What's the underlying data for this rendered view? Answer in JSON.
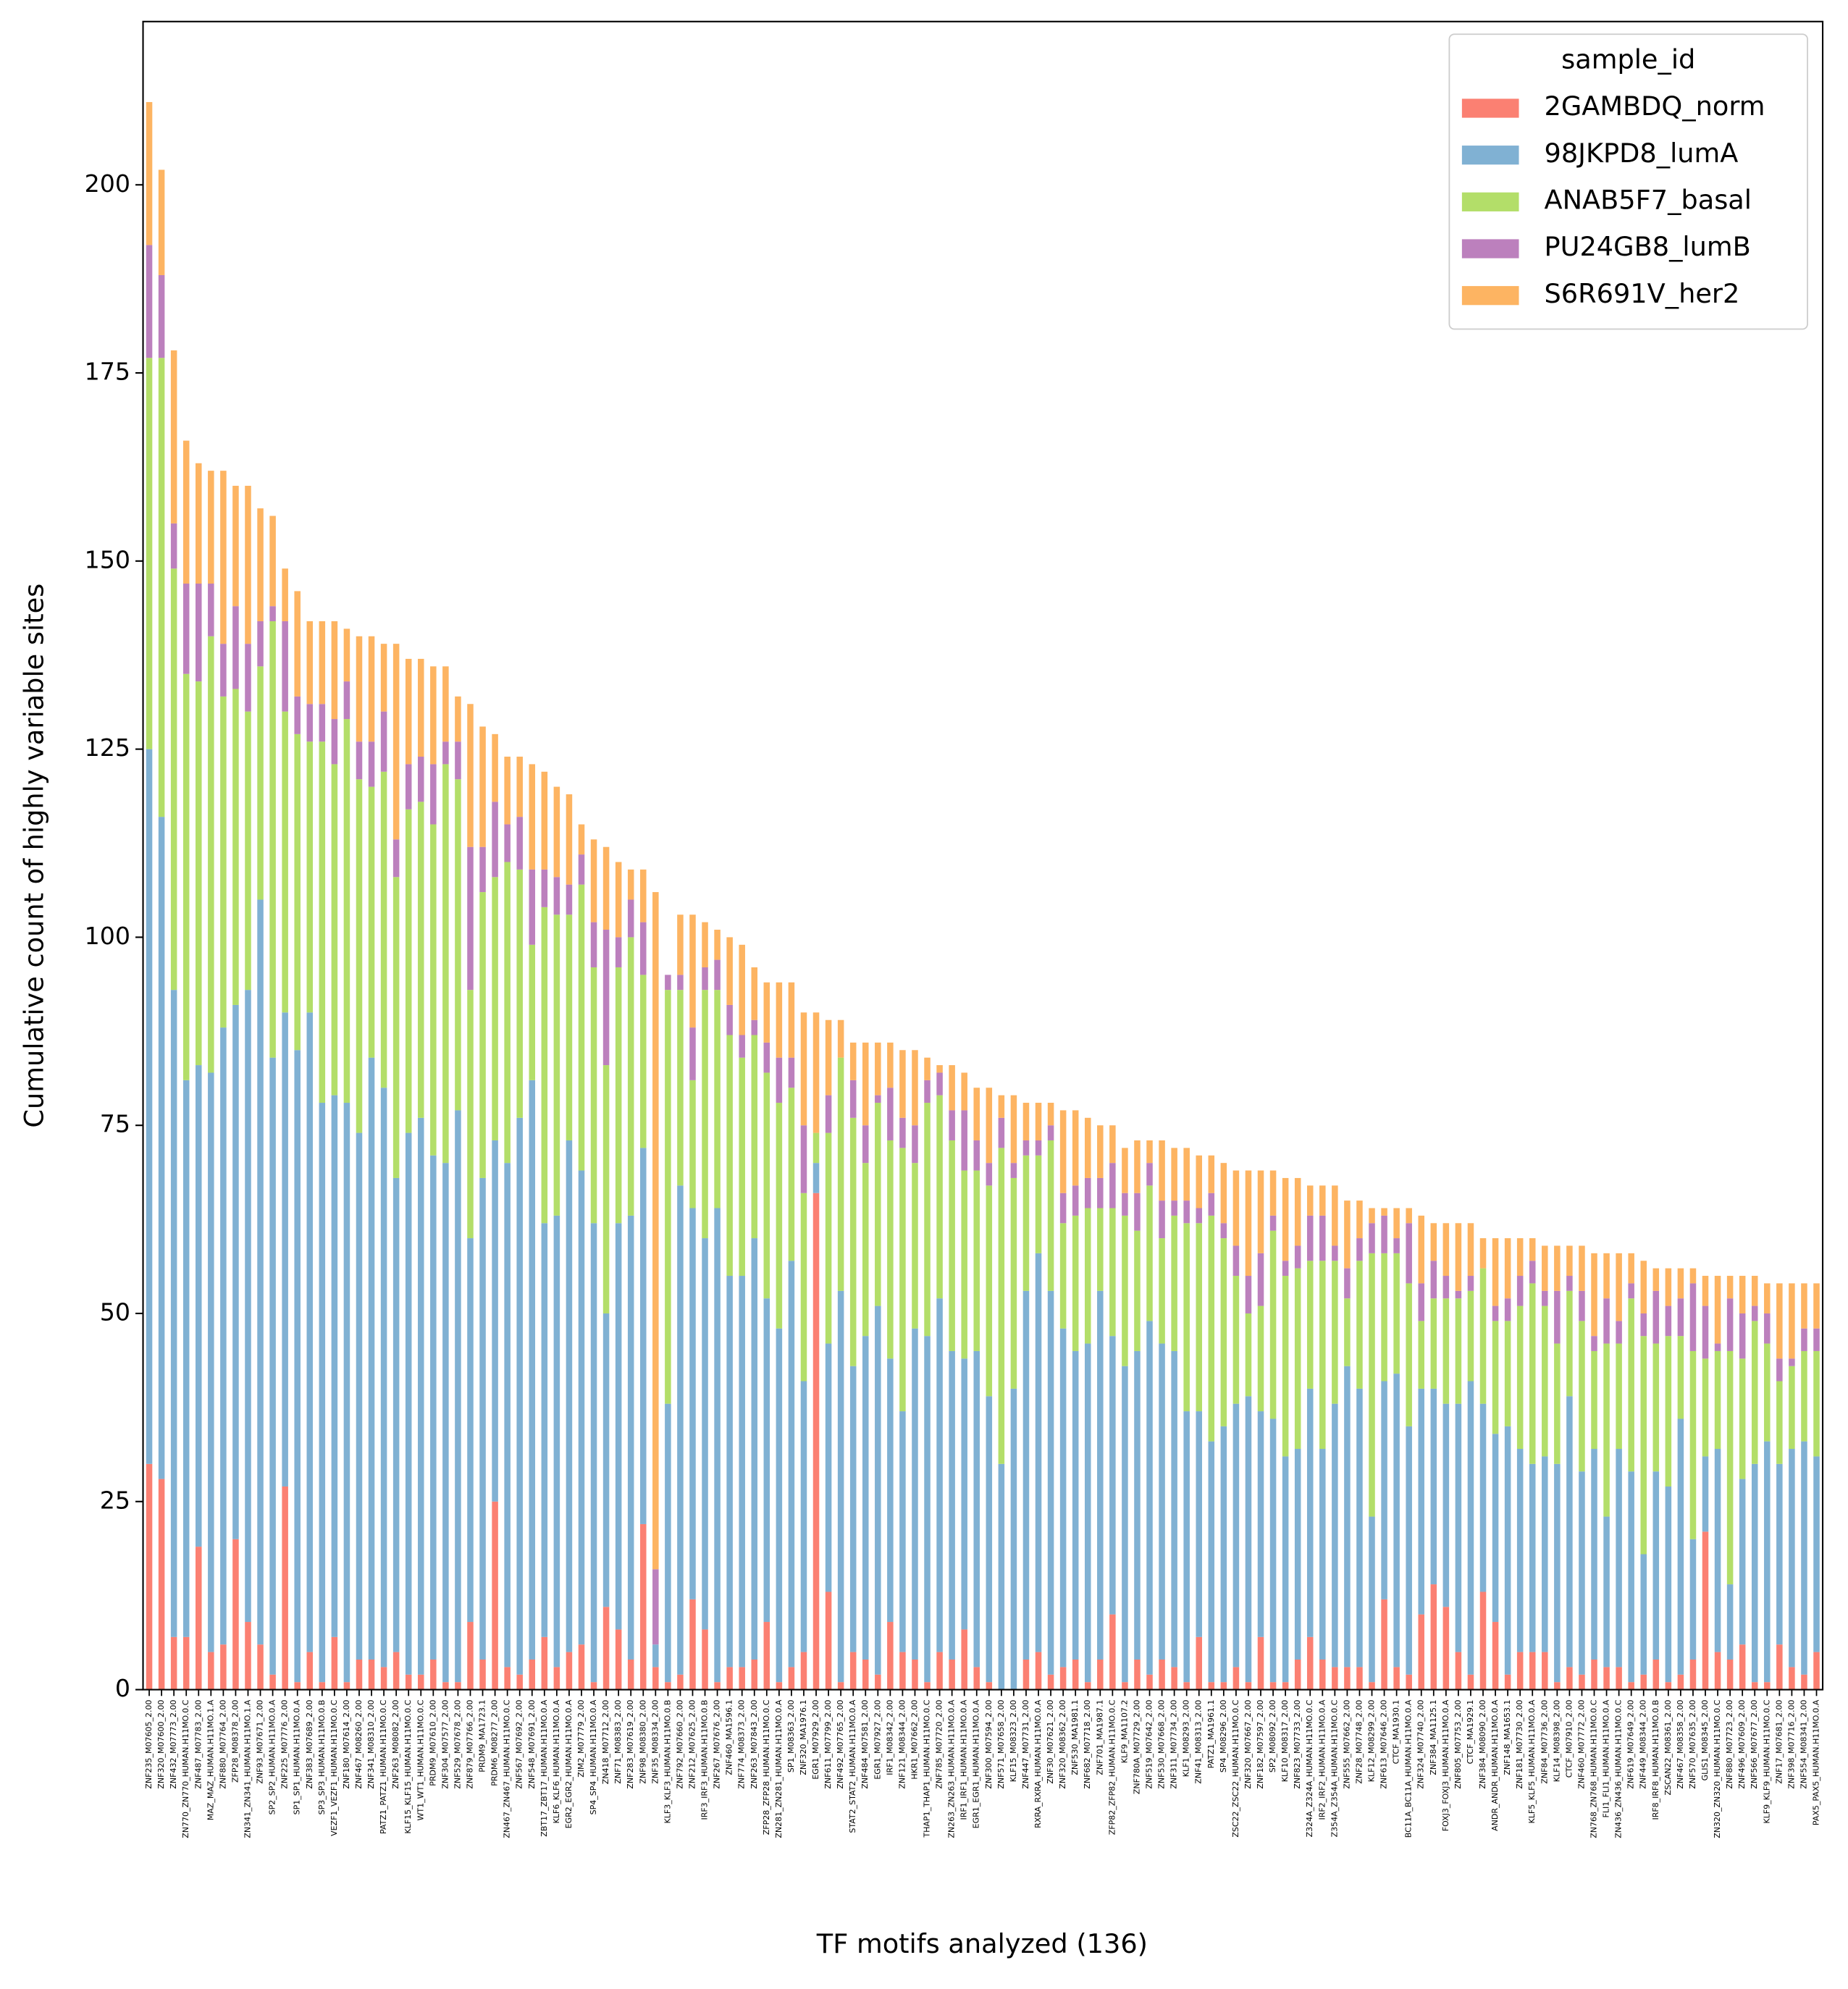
{
  "chart_data": {
    "type": "stacked-bar",
    "xlabel": "TF motifs analyzed (136)",
    "ylabel": "Cumulative count of highly variable sites",
    "legend_title": "sample_id",
    "legend_loc": "upper right",
    "ylim": [
      0,
      221.7
    ],
    "yticks": [
      0,
      25,
      50,
      75,
      100,
      125,
      150,
      175,
      200
    ],
    "categories": [
      "ZNF235_M07605_2.00",
      "ZNF320_M07600_2.00",
      "ZNF432_M07773_2.00",
      "ZN770_ZN770_HUMAN.H11MO.0.C",
      "ZNF487_M07783_2.00",
      "MAZ_MAZ_HUMAN.H11MO.1.A",
      "ZNF880_M07764_2.00",
      "ZFP28_M08378_2.00",
      "ZN341_ZN341_HUMAN.H11MO.1.A",
      "ZNF93_M07671_2.00",
      "SP2_SP2_HUMAN.H11MO.0.A",
      "ZNF225_M07776_2.00",
      "SP1_SP1_HUMAN.H11MO.0.A",
      "ZNF383_M07689_2.00",
      "SP3_SP3_HUMAN.H11MO.0.B",
      "VEZF1_VEZF1_HUMAN.H11MO.0.C",
      "ZNF180_M07614_2.00",
      "ZNF467_M08260_2.00",
      "ZNF341_M08310_2.00",
      "PATZ1_PATZ1_HUMAN.H11MO.0.C",
      "ZNF263_M08082_2.00",
      "KLF15_KLF15_HUMAN.H11MO.0.C",
      "WT1_WT1_HUMAN.H11MO.0.C",
      "PRDM9_M07610_2.00",
      "ZNF304_M07577_2.00",
      "ZNF529_M07678_2.00",
      "ZNF879_M07766_2.00",
      "PRDM9_MA1723.1",
      "PRDM6_M08277_2.00",
      "ZN467_ZN467_HUMAN.H11MO.0.C",
      "ZNF567_M07692_2.00",
      "ZNF548_M07691_2.00",
      "ZBT17_ZBT17_HUMAN.H11MO.0.A",
      "KLF6_KLF6_HUMAN.H11MO.0.A",
      "EGR2_EGR2_HUMAN.H11MO.0.A",
      "ZIM2_M07779_2.00",
      "SP4_SP4_HUMAN.H11MO.0.A",
      "ZN418_M07712_2.00",
      "ZNF71_M08383_2.00",
      "ZNF283_M07619_2.00",
      "ZNF98_M08380_2.00",
      "ZNF35_M08334_2.00",
      "KLF3_KLF3_HUMAN.H11MO.0.B",
      "ZNF792_M07660_2.00",
      "ZNF212_M07625_2.00",
      "IRF3_IRF3_HUMAN.H11MO.0.B",
      "ZNF267_M07676_2.00",
      "ZNF460_MA1596.1",
      "ZNF774_M08373_2.00",
      "ZNF263_M07843_2.00",
      "ZFP28_ZFP28_HUMAN.H11MO.0.C",
      "ZN281_ZN281_HUMAN.H11MO.0.A",
      "SP1_M08363_2.00",
      "ZNF320_MA1976.1",
      "EGR1_M07929_2.00",
      "ZNF611_M07799_2.00",
      "ZNF492_M07765_2.00",
      "STAT2_STAT2_HUMAN.H11MO.0.A",
      "ZNF484_M07581_2.00",
      "EGR1_M07927_2.00",
      "IRF1_M08342_2.00",
      "ZNF121_M08344_2.00",
      "HKR1_M07662_2.00",
      "THAP1_THAP1_HUMAN.H11MO.0.C",
      "ZNF785_M07720_2.00",
      "ZN263_ZN263_HUMAN.H11MO.0.A",
      "IRF1_IRF1_HUMAN.H11MO.0.A",
      "EGR1_EGR1_HUMAN.H11MO.0.A",
      "ZNF300_M07594_2.00",
      "ZNF571_M07658_2.00",
      "KLF15_M08323_2.00",
      "ZNF447_M07731_2.00",
      "RXRA_RXRA_HUMAN.H11MO.0.A",
      "ZNF30_M07621_2.00",
      "ZNF320_M08362_2.00",
      "ZNF530_MA1981.1",
      "ZNF682_M07718_2.00",
      "ZNF701_MA1987.1",
      "ZFP82_ZFP82_HUMAN.H11MO.0.C",
      "KLF9_MA1107.2",
      "ZNF780A_M07729_2.00",
      "ZNF519_M07642_2.00",
      "ZNF530_M07668_2.00",
      "ZNF311_M07734_2.00",
      "KLF1_M08293_2.00",
      "ZNF41_M08313_2.00",
      "PATZ1_MA1961.1",
      "SP4_M08296_2.00",
      "ZSC22_ZSC22_HUMAN.H11MO.0.C",
      "ZNF320_M07667_2.00",
      "ZNF182_M07597_2.00",
      "SP2_M08092_2.00",
      "KLF10_M08317_2.00",
      "ZNF823_M07733_2.00",
      "Z324A_Z324A_HUMAN.H11MO.0.C",
      "IRF2_IRF2_HUMAN.H11MO.0.A",
      "Z354A_Z354A_HUMAN.H11MO.0.C",
      "ZNF555_M07662_2.00",
      "ZNF28_M07748_2.00",
      "KLF12_M08299_2.00",
      "ZNF613_M07646_2.00",
      "CTCF_MA1930.1",
      "BC11A_BC11A_HUMAN.H11MO.0.A",
      "ZNF324_M07740_2.00",
      "ZNF384_MA1125.1",
      "FOXJ3_FOXJ3_HUMAN.H11MO.0.A",
      "ZNF805_M07753_2.00",
      "CTCF_MA1929.1",
      "ZNF384_M08090_2.00",
      "ANDR_ANDR_HUMAN.H11MO.0.A",
      "ZNF148_MA1653.1",
      "ZNF181_M07730_2.00",
      "KLF5_KLF5_HUMAN.H11MO.0.A",
      "ZNF84_M07736_2.00",
      "KLF14_M08398_2.00",
      "CTCF_M07910_2.00",
      "ZNF460_M07772_2.00",
      "ZN768_ZN768_HUMAN.H11MO.0.C",
      "FLI1_FLI1_HUMAN.H11MO.0.A",
      "ZN436_ZN436_HUMAN.H11MO.0.C",
      "ZNF619_M07649_2.00",
      "ZNF449_M08344_2.00",
      "IRF8_IRF8_HUMAN.H11MO.0.B",
      "ZSCAN22_M08361_2.00",
      "ZNF467_M08358_2.00",
      "ZNF570_M07635_2.00",
      "GLIS1_M08345_2.00",
      "ZN320_ZN320_HUMAN.H11MO.0.C",
      "ZNF880_M07723_2.00",
      "ZNF496_M07609_2.00",
      "ZNF566_M07677_2.00",
      "KLF9_KLF9_HUMAN.H11MO.0.C",
      "ZNF17_M07681_2.00",
      "ZNF398_M07716_2.00",
      "ZNF554_M08341_2.00",
      "PAX5_PAX5_HUMAN.H11MO.0.A"
    ],
    "series": [
      {
        "name": "2GAMBDQ_norm",
        "color": "#fb8072",
        "values": [
          30,
          28,
          7,
          7,
          19,
          5,
          6,
          20,
          9,
          6,
          2,
          27,
          1,
          5,
          1,
          7,
          1,
          4,
          4,
          3,
          5,
          2,
          2,
          4,
          1,
          1,
          9,
          4,
          25,
          3,
          2,
          4,
          7,
          3,
          5,
          6,
          1,
          11,
          8,
          4,
          22,
          3,
          1,
          2,
          12,
          8,
          1,
          3,
          3,
          4,
          9,
          1,
          3,
          5,
          66,
          13,
          1,
          5,
          4,
          2,
          9,
          5,
          4,
          1,
          5,
          4,
          8,
          3,
          1,
          0,
          0,
          4,
          5,
          2,
          3,
          4,
          1,
          4,
          10,
          1,
          4,
          2,
          4,
          3,
          1,
          7,
          1,
          1,
          3,
          1,
          7,
          1,
          1,
          4,
          7,
          4,
          3,
          3,
          3,
          1,
          12,
          3,
          2,
          10,
          14,
          11,
          5,
          2,
          13,
          9,
          2,
          5,
          5,
          5,
          1,
          3,
          2,
          4,
          3,
          3,
          1,
          2,
          4,
          1,
          2,
          4,
          21,
          5,
          4,
          6,
          1,
          1,
          6,
          3,
          2,
          5
        ]
      },
      {
        "name": "98JKPD8_lumA",
        "color": "#80b1d3",
        "values": [
          95,
          88,
          86,
          74,
          64,
          77,
          82,
          71,
          84,
          99,
          82,
          63,
          84,
          85,
          77,
          72,
          77,
          70,
          80,
          77,
          63,
          72,
          74,
          67,
          69,
          76,
          51,
          64,
          48,
          67,
          74,
          77,
          55,
          60,
          68,
          63,
          61,
          39,
          54,
          59,
          50,
          3,
          37,
          65,
          52,
          52,
          63,
          52,
          52,
          56,
          43,
          47,
          54,
          36,
          4,
          33,
          52,
          38,
          43,
          49,
          35,
          32,
          44,
          46,
          47,
          41,
          36,
          42,
          38,
          30,
          40,
          49,
          53,
          51,
          45,
          41,
          45,
          49,
          37,
          42,
          41,
          47,
          42,
          42,
          36,
          30,
          32,
          34,
          35,
          38,
          30,
          35,
          30,
          28,
          33,
          28,
          35,
          40,
          37,
          22,
          29,
          39,
          33,
          30,
          26,
          27,
          33,
          39,
          25,
          25,
          33,
          27,
          25,
          26,
          29,
          36,
          27,
          28,
          20,
          29,
          28,
          16,
          25,
          26,
          34,
          16,
          10,
          27,
          10,
          22,
          29,
          32,
          24,
          29,
          31,
          26
        ]
      },
      {
        "name": "ANAB5F7_basal",
        "color": "#b3de69",
        "values": [
          52,
          61,
          56,
          54,
          51,
          58,
          44,
          42,
          37,
          31,
          58,
          40,
          42,
          36,
          48,
          44,
          51,
          47,
          36,
          42,
          40,
          43,
          42,
          44,
          53,
          44,
          33,
          38,
          35,
          40,
          33,
          18,
          42,
          40,
          30,
          38,
          34,
          33,
          34,
          37,
          23,
          0,
          55,
          26,
          17,
          33,
          29,
          32,
          29,
          27,
          30,
          30,
          23,
          25,
          4,
          28,
          31,
          33,
          23,
          27,
          29,
          35,
          22,
          31,
          27,
          28,
          25,
          24,
          28,
          42,
          28,
          18,
          13,
          20,
          14,
          18,
          18,
          11,
          17,
          20,
          16,
          18,
          14,
          18,
          25,
          25,
          30,
          25,
          17,
          11,
          14,
          25,
          24,
          24,
          17,
          25,
          19,
          9,
          17,
          35,
          17,
          16,
          19,
          9,
          12,
          14,
          14,
          12,
          18,
          15,
          14,
          19,
          24,
          20,
          16,
          14,
          20,
          13,
          23,
          14,
          23,
          29,
          17,
          20,
          11,
          25,
          13,
          13,
          31,
          16,
          19,
          13,
          11,
          11,
          12,
          14
        ]
      },
      {
        "name": "PU24GB8_lumB",
        "color": "#bc80bd",
        "values": [
          15,
          11,
          6,
          12,
          13,
          7,
          7,
          11,
          9,
          6,
          2,
          12,
          5,
          5,
          5,
          6,
          5,
          5,
          6,
          8,
          5,
          6,
          6,
          8,
          3,
          5,
          19,
          6,
          10,
          5,
          7,
          10,
          5,
          5,
          4,
          4,
          6,
          18,
          4,
          5,
          7,
          10,
          2,
          2,
          7,
          3,
          4,
          4,
          3,
          2,
          4,
          6,
          4,
          9,
          0,
          5,
          0,
          5,
          5,
          1,
          7,
          4,
          5,
          3,
          3,
          4,
          8,
          4,
          3,
          4,
          2,
          2,
          2,
          2,
          4,
          4,
          4,
          4,
          6,
          3,
          5,
          3,
          5,
          2,
          3,
          2,
          3,
          2,
          4,
          5,
          7,
          2,
          2,
          3,
          6,
          6,
          2,
          4,
          3,
          4,
          5,
          2,
          8,
          5,
          5,
          3,
          1,
          2,
          0,
          2,
          3,
          4,
          3,
          2,
          7,
          2,
          4,
          2,
          6,
          3,
          2,
          3,
          7,
          4,
          5,
          9,
          7,
          1,
          7,
          6,
          2,
          4,
          3,
          1,
          3,
          3
        ]
      },
      {
        "name": "S6R691V_her2",
        "color": "#fdb462",
        "values": [
          19,
          14,
          23,
          19,
          16,
          15,
          23,
          16,
          21,
          15,
          12,
          7,
          14,
          11,
          11,
          13,
          7,
          14,
          14,
          9,
          26,
          14,
          13,
          13,
          10,
          6,
          19,
          16,
          9,
          9,
          8,
          14,
          13,
          12,
          12,
          4,
          11,
          11,
          10,
          4,
          7,
          90,
          0,
          8,
          15,
          6,
          4,
          9,
          12,
          7,
          8,
          10,
          10,
          15,
          16,
          10,
          5,
          5,
          11,
          7,
          6,
          9,
          10,
          3,
          1,
          6,
          5,
          7,
          10,
          3,
          9,
          5,
          5,
          3,
          11,
          10,
          8,
          7,
          5,
          6,
          7,
          3,
          8,
          7,
          7,
          7,
          5,
          8,
          10,
          14,
          11,
          6,
          11,
          9,
          4,
          4,
          8,
          9,
          5,
          2,
          1,
          4,
          2,
          9,
          5,
          7,
          9,
          7,
          4,
          9,
          8,
          5,
          3,
          6,
          6,
          4,
          6,
          11,
          6,
          9,
          4,
          7,
          3,
          5,
          4,
          2,
          4,
          9,
          3,
          5,
          4,
          4,
          10,
          10,
          6,
          6
        ]
      }
    ]
  }
}
